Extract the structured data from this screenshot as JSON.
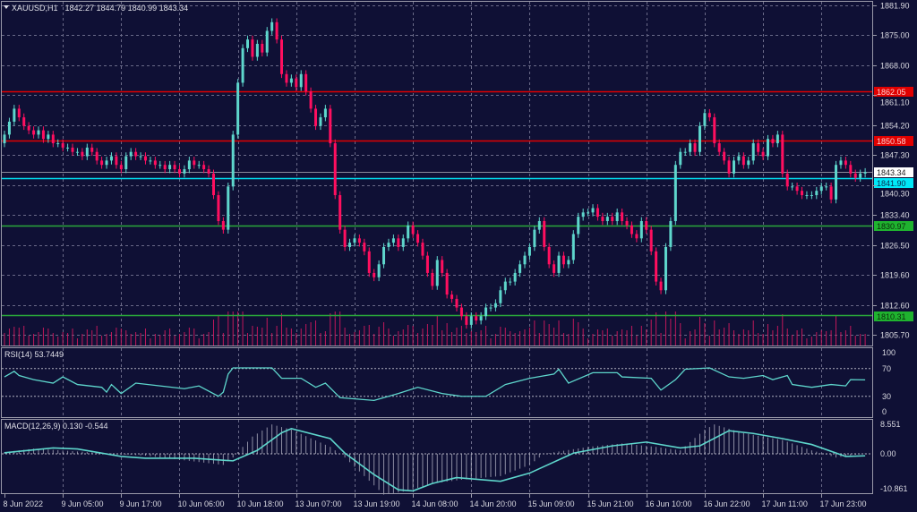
{
  "header": {
    "symbol": "XAUUSD,H1",
    "ohlc": "1842.27 1844.79 1840.99 1843.34",
    "menu_icon": "triangle-down-icon"
  },
  "colors": {
    "background": "#0f1035",
    "bull": "#5ed6cc",
    "bear": "#ff0f5f",
    "grid": "#6a6a88",
    "volume": "#c2185b",
    "rsi_line": "#5ed6cc",
    "macd_signal": "#5ed6cc",
    "macd_hist": "#b8b8c8"
  },
  "chart_data": [
    {
      "type": "candlestick",
      "title": "XAUUSD,H1",
      "ylim": [
        1805.7,
        1881.9
      ],
      "y_ticks": [
        "1881.90",
        "1875.00",
        "1868.00",
        "1861.10",
        "1854.20",
        "1847.30",
        "1840.30",
        "1833.40",
        "1826.50",
        "1819.60",
        "1812.60",
        "1805.70"
      ],
      "x_ticks": [
        {
          "bar": 0,
          "label": "8 Jun 2022"
        },
        {
          "bar": 12,
          "label": "9 Jun 05:00"
        },
        {
          "bar": 24,
          "label": "9 Jun 17:00"
        },
        {
          "bar": 36,
          "label": "10 Jun 06:00"
        },
        {
          "bar": 48,
          "label": "10 Jun 18:00"
        },
        {
          "bar": 60,
          "label": "13 Jun 07:00"
        },
        {
          "bar": 72,
          "label": "13 Jun 19:00"
        },
        {
          "bar": 84,
          "label": "14 Jun 08:00"
        },
        {
          "bar": 96,
          "label": "14 Jun 20:00"
        },
        {
          "bar": 108,
          "label": "15 Jun 09:00"
        },
        {
          "bar": 120,
          "label": "15 Jun 21:00"
        },
        {
          "bar": 132,
          "label": "16 Jun 10:00"
        },
        {
          "bar": 144,
          "label": "16 Jun 22:00"
        },
        {
          "bar": 156,
          "label": "17 Jun 11:00"
        },
        {
          "bar": 168,
          "label": "17 Jun 23:00"
        }
      ],
      "first_open": 1850,
      "close": [
        1852,
        1855,
        1858,
        1856,
        1854,
        1853,
        1852,
        1853,
        1851,
        1852,
        1850,
        1850,
        1849,
        1849,
        1848,
        1848,
        1847,
        1849,
        1848,
        1846,
        1845,
        1846,
        1847,
        1845,
        1844,
        1847,
        1848,
        1847,
        1847,
        1846,
        1846,
        1845,
        1845,
        1844,
        1845,
        1844,
        1843,
        1844,
        1846,
        1845,
        1845,
        1844,
        1843,
        1838,
        1832,
        1830,
        1840,
        1852,
        1864,
        1872,
        1874,
        1870,
        1873,
        1871,
        1876,
        1878,
        1874,
        1866,
        1864,
        1865,
        1863,
        1866,
        1862,
        1858,
        1854,
        1856,
        1858,
        1850,
        1838,
        1830,
        1826,
        1827,
        1828,
        1827,
        1825,
        1820,
        1819,
        1822,
        1826,
        1827,
        1828,
        1826,
        1828,
        1831,
        1829,
        1827,
        1824,
        1820,
        1817,
        1823,
        1820,
        1815,
        1814,
        1812,
        1810,
        1808,
        1810,
        1809,
        1810,
        1812,
        1812,
        1813,
        1816,
        1818,
        1818,
        1820,
        1822,
        1824,
        1826,
        1830,
        1832,
        1826,
        1822,
        1820,
        1824,
        1822,
        1823,
        1829,
        1833,
        1834,
        1834,
        1835,
        1833,
        1832,
        1833,
        1832,
        1834,
        1832,
        1831,
        1829,
        1828,
        1832,
        1830,
        1825,
        1818,
        1816,
        1826,
        1832,
        1845,
        1848,
        1848,
        1850,
        1848,
        1854,
        1857,
        1856,
        1850,
        1848,
        1846,
        1843,
        1846,
        1847,
        1845,
        1846,
        1850,
        1848,
        1847,
        1851,
        1850,
        1852,
        1843,
        1840,
        1840,
        1839,
        1838,
        1838,
        1838,
        1839,
        1840,
        1840,
        1837,
        1845,
        1846,
        1845,
        1843,
        1842,
        1843,
        1843.34
      ],
      "levels": [
        {
          "price": 1862.05,
          "label": "1862.05",
          "color": "#e00000",
          "text_color": "#ff3030"
        },
        {
          "price": 1850.58,
          "label": "1850.58",
          "color": "#e00000",
          "text_color": "#ff3030"
        },
        {
          "price": 1843.34,
          "label": "1843.34",
          "color": "#8c8c9c",
          "box": "#ffffff",
          "text_color": "#202020"
        },
        {
          "price": 1841.9,
          "label": "1841.90",
          "color": "#00e0f0",
          "box": "#00e8f8",
          "text_color": "#0a2a50"
        },
        {
          "price": 1830.97,
          "label": "1830.97",
          "color": "#2aa83a",
          "box": "#1fb32f",
          "text_color": "#0a2a0a"
        },
        {
          "price": 1810.31,
          "label": "1810.31",
          "color": "#2aa83a",
          "box": "#1fb32f",
          "text_color": "#0a2a0a"
        }
      ]
    },
    {
      "type": "line",
      "title": "RSI(14) 53.7449",
      "ylim": [
        0,
        100
      ],
      "y_ticks": [
        "100",
        "70",
        "30",
        "0"
      ],
      "levels": [
        70,
        30
      ],
      "points": [
        [
          0,
          58
        ],
        [
          2,
          66
        ],
        [
          3,
          60
        ],
        [
          6,
          54
        ],
        [
          10,
          49
        ],
        [
          12,
          58
        ],
        [
          15,
          47
        ],
        [
          20,
          43
        ],
        [
          21,
          36
        ],
        [
          22,
          47
        ],
        [
          24,
          34
        ],
        [
          27,
          49
        ],
        [
          32,
          45
        ],
        [
          37,
          41
        ],
        [
          40,
          45
        ],
        [
          44,
          30
        ],
        [
          45,
          36
        ],
        [
          46,
          62
        ],
        [
          47,
          71
        ],
        [
          55,
          71
        ],
        [
          57,
          56
        ],
        [
          61,
          56
        ],
        [
          64,
          43
        ],
        [
          66,
          49
        ],
        [
          69,
          28
        ],
        [
          76,
          24
        ],
        [
          81,
          34
        ],
        [
          85,
          43
        ],
        [
          90,
          34
        ],
        [
          94,
          30
        ],
        [
          99,
          30
        ],
        [
          103,
          47
        ],
        [
          108,
          56
        ],
        [
          113,
          62
        ],
        [
          114,
          69
        ],
        [
          116,
          49
        ],
        [
          121,
          64
        ],
        [
          126,
          64
        ],
        [
          127,
          58
        ],
        [
          133,
          56
        ],
        [
          135,
          39
        ],
        [
          138,
          54
        ],
        [
          140,
          69
        ],
        [
          145,
          71
        ],
        [
          149,
          58
        ],
        [
          152,
          56
        ],
        [
          156,
          60
        ],
        [
          158,
          54
        ],
        [
          161,
          60
        ],
        [
          162,
          47
        ],
        [
          166,
          43
        ],
        [
          170,
          47
        ],
        [
          173,
          45
        ],
        [
          174,
          54
        ],
        [
          177,
          53.7449
        ]
      ]
    },
    {
      "type": "bar+line",
      "title": "MACD(12,26,9) 0.130 -0.544",
      "ylim": [
        -10.861,
        8.551
      ],
      "y_ticks": [
        "8.551",
        "0.00",
        "-10.861"
      ],
      "main": [
        [
          0,
          0.5
        ],
        [
          6,
          1.5
        ],
        [
          17,
          0.5
        ],
        [
          29,
          -0.5
        ],
        [
          45,
          -3
        ],
        [
          47,
          -1
        ],
        [
          51,
          5
        ],
        [
          55,
          8.5
        ],
        [
          59,
          7
        ],
        [
          67,
          2
        ],
        [
          70,
          -1
        ],
        [
          74,
          -6
        ],
        [
          78,
          -11
        ],
        [
          83,
          -10
        ],
        [
          88,
          -8
        ],
        [
          94,
          -7
        ],
        [
          102,
          -6
        ],
        [
          108,
          -3
        ],
        [
          111,
          0
        ],
        [
          120,
          2
        ],
        [
          127,
          3
        ],
        [
          134,
          2
        ],
        [
          139,
          1
        ],
        [
          144,
          7
        ],
        [
          146,
          8.5
        ],
        [
          152,
          6
        ],
        [
          160,
          4
        ],
        [
          166,
          1
        ],
        [
          171,
          -1
        ],
        [
          177,
          0.13
        ]
      ],
      "signal": [
        [
          0,
          0.3
        ],
        [
          10,
          1.7
        ],
        [
          15,
          1.4
        ],
        [
          24,
          -0.7
        ],
        [
          29,
          -1.2
        ],
        [
          39,
          -1.2
        ],
        [
          47,
          -1.9
        ],
        [
          52,
          1.0
        ],
        [
          57,
          6.1
        ],
        [
          59,
          7.3
        ],
        [
          67,
          4.4
        ],
        [
          70,
          0.2
        ],
        [
          76,
          -5.6
        ],
        [
          81,
          -9.7
        ],
        [
          84,
          -10
        ],
        [
          88,
          -8
        ],
        [
          93,
          -6.4
        ],
        [
          102,
          -7.4
        ],
        [
          108,
          -5.2
        ],
        [
          117,
          0.2
        ],
        [
          125,
          2.3
        ],
        [
          132,
          3.4
        ],
        [
          139,
          1.7
        ],
        [
          143,
          2.3
        ],
        [
          149,
          6.7
        ],
        [
          154,
          5.9
        ],
        [
          160,
          4.4
        ],
        [
          166,
          2.7
        ],
        [
          173,
          -0.7
        ],
        [
          177,
          -0.544
        ]
      ]
    }
  ]
}
